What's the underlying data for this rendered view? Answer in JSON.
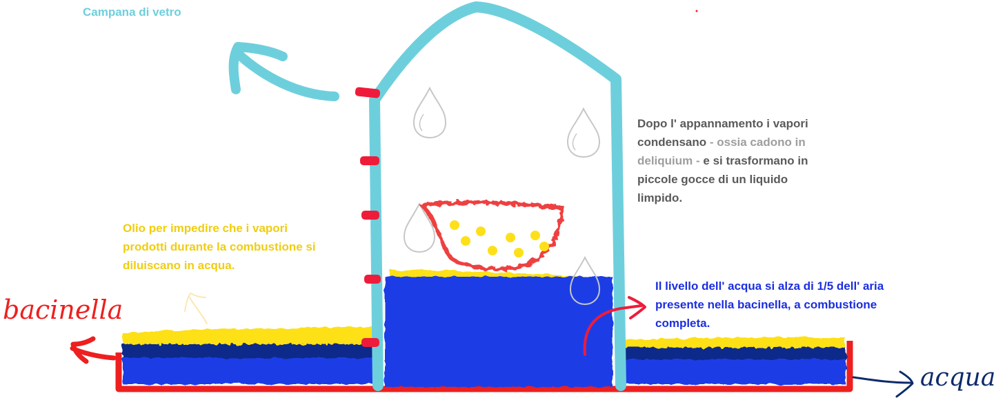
{
  "labels": {
    "bell": "Campana di vetro",
    "oil": "Olio per impedire che i vapori prodotti durante la combustione si diluiscano in acqua.",
    "condensation_1": "Dopo l' appannamento i vapori condensano",
    "condensation_2": " - ossia cadono in deliquium - ",
    "condensation_3": "e si trasformano in piccole gocce di un liquido limpido.",
    "water_level": "Il livello dell' acqua si alza di 1/5 dell' aria presente nella bacinella, a combustione completa.",
    "basin": "bacinella",
    "water": "acqua"
  },
  "colors": {
    "bell": "#6ecfdc",
    "bell_marks": "#ee1c3a",
    "water": "#1f3ee6",
    "water_dark": "#0d2a8a",
    "oil": "#fde019",
    "basin": "#ee1f1f",
    "bowl": "#ee4040",
    "drop_outline": "#c7c7c7",
    "text_grey": "#5a5a5a",
    "text_light_grey": "#9e9e9e",
    "text_oil": "#f0cd10",
    "text_water": "#1b2ee0",
    "text_bell": "#6ecfdc",
    "text_water_hand": "#0d2a6a"
  },
  "icons": [
    "drop-icon",
    "arrow-icon"
  ]
}
